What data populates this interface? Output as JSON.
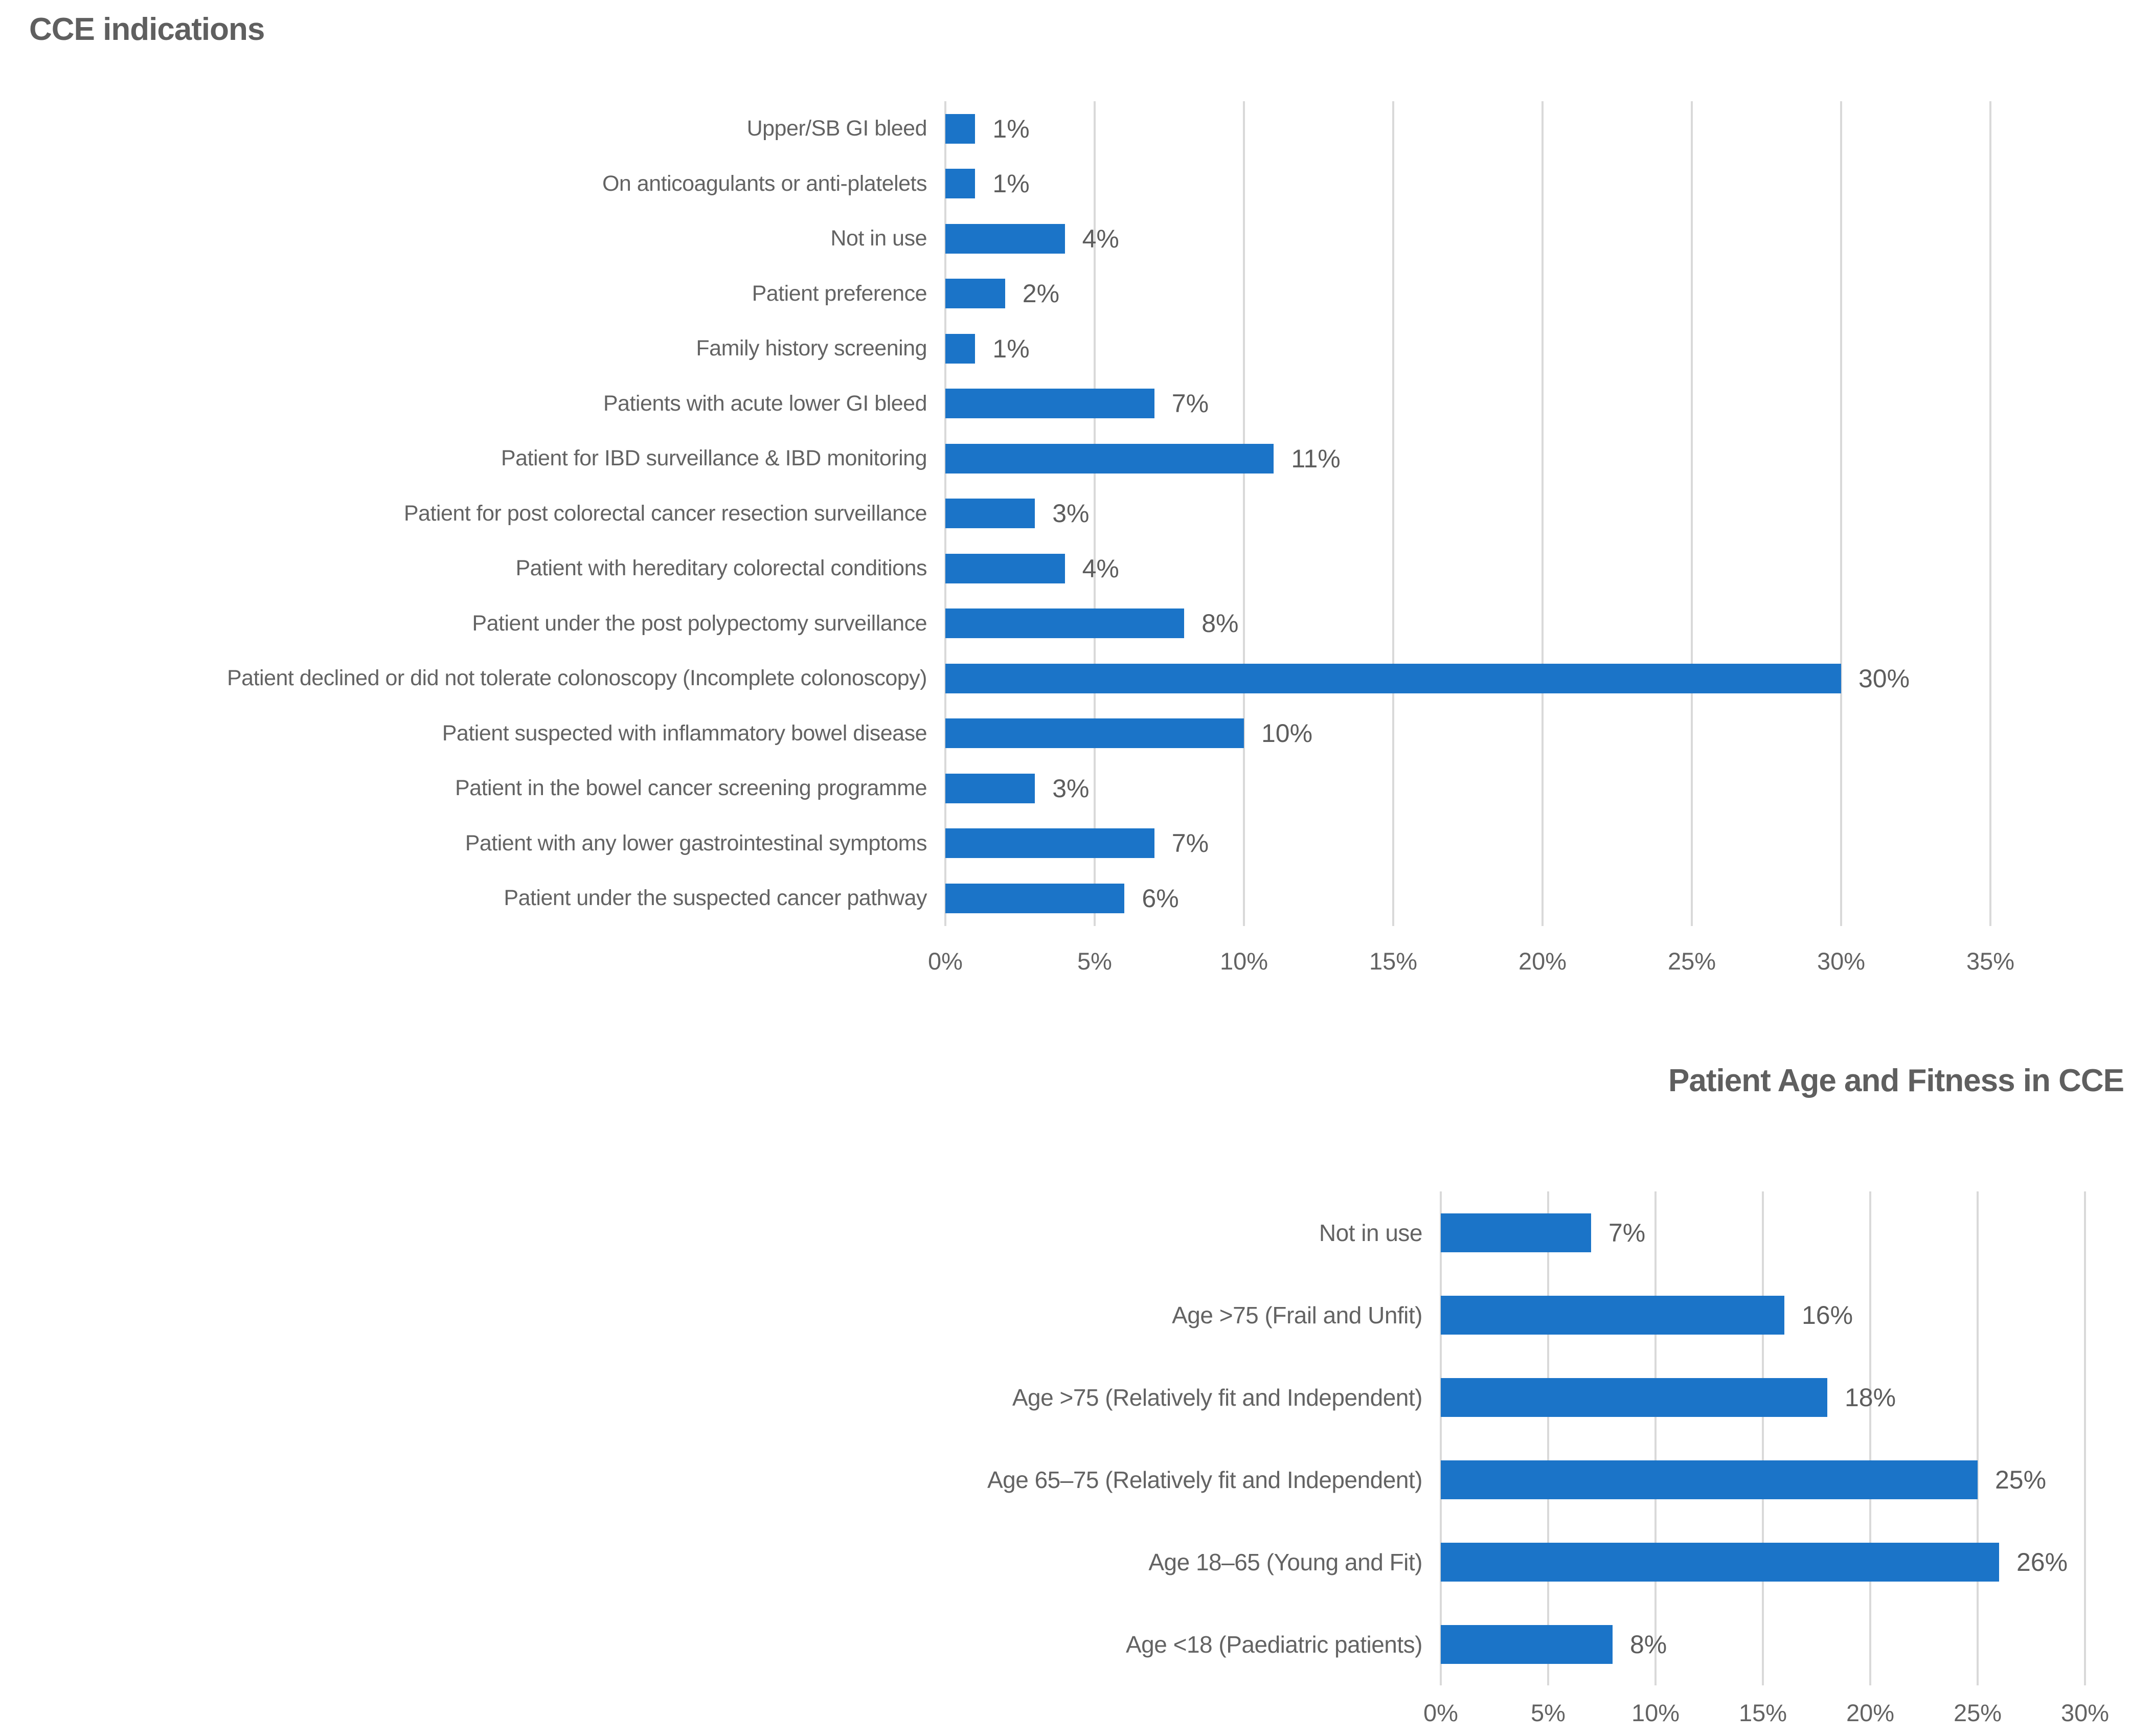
{
  "page": {
    "background": "#ffffff"
  },
  "chart_data": [
    {
      "type": "bar",
      "orientation": "horizontal",
      "title": "CCE indications",
      "title_align": "left",
      "categories": [
        "Upper/SB GI bleed",
        "On anticoagulants or anti-platelets",
        "Not in use",
        "Patient preference",
        "Family history screening",
        "Patients with acute lower GI bleed",
        "Patient for IBD surveillance & IBD monitoring",
        "Patient for post colorectal cancer resection surveillance",
        "Patient with hereditary colorectal conditions",
        "Patient under the post polypectomy surveillance",
        "Patient declined or did not tolerate colonoscopy (Incomplete colonoscopy)",
        "Patient suspected with inflammatory bowel disease",
        "Patient in the bowel cancer screening programme",
        "Patient with any lower gastrointestinal symptoms",
        "Patient under the suspected cancer pathway"
      ],
      "values": [
        1,
        1,
        4,
        2,
        1,
        7,
        11,
        3,
        4,
        8,
        30,
        10,
        3,
        7,
        6
      ],
      "data_labels": [
        "1%",
        "1%",
        "4%",
        "2%",
        "1%",
        "7%",
        "11%",
        "3%",
        "4%",
        "8%",
        "30%",
        "10%",
        "3%",
        "7%",
        "6%"
      ],
      "x_ticks": [
        "0%",
        "5%",
        "10%",
        "15%",
        "20%",
        "25%",
        "30%",
        "35%"
      ],
      "xlim": [
        0,
        35
      ],
      "tick_interval": 5,
      "grid": true,
      "legend": false,
      "bar_color": "#1b74c8",
      "text_color": "#636363",
      "grid_color": "#d9d9d9"
    },
    {
      "type": "bar",
      "orientation": "horizontal",
      "title": "Patient Age and Fitness in CCE",
      "title_align": "right",
      "categories": [
        "Not in use",
        "Age >75 (Frail and Unfit)",
        "Age >75 (Relatively fit and Independent)",
        "Age 65–75 (Relatively fit and Independent)",
        "Age 18–65 (Young and Fit)",
        "Age <18 (Paediatric patients)"
      ],
      "values": [
        7,
        16,
        18,
        25,
        26,
        8
      ],
      "data_labels": [
        "7%",
        "16%",
        "18%",
        "25%",
        "26%",
        "8%"
      ],
      "x_ticks": [
        "0%",
        "5%",
        "10%",
        "15%",
        "20%",
        "25%",
        "30%"
      ],
      "xlim": [
        0,
        30
      ],
      "tick_interval": 5,
      "grid": true,
      "legend": false,
      "bar_color": "#1b74c8",
      "text_color": "#636363",
      "grid_color": "#d9d9d9"
    }
  ]
}
